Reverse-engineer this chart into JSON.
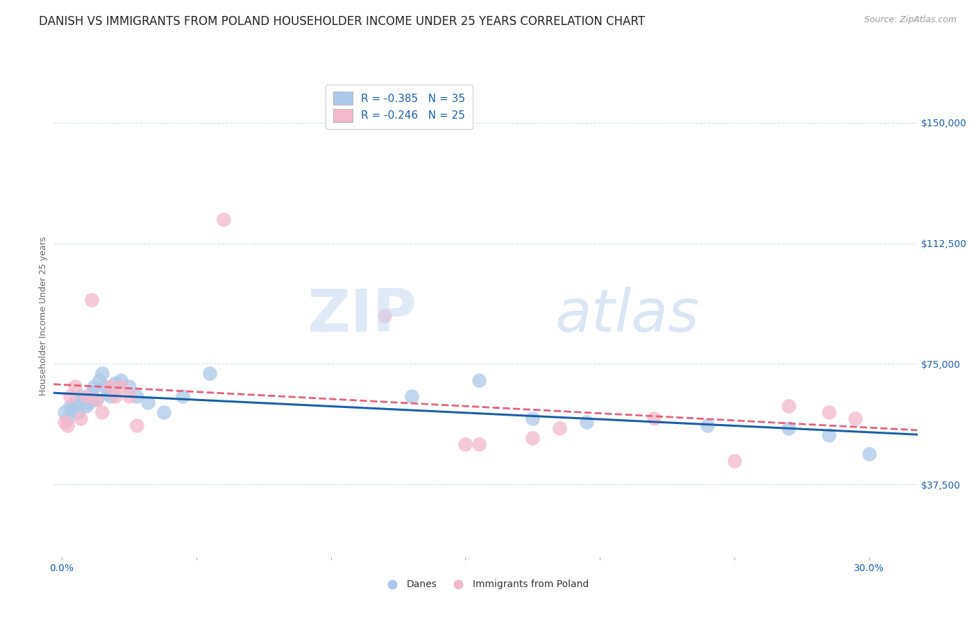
{
  "title": "DANISH VS IMMIGRANTS FROM POLAND HOUSEHOLDER INCOME UNDER 25 YEARS CORRELATION CHART",
  "source": "Source: ZipAtlas.com",
  "ylabel": "Householder Income Under 25 years",
  "ytick_labels": [
    "$37,500",
    "$75,000",
    "$112,500",
    "$150,000"
  ],
  "ytick_values": [
    37500,
    75000,
    112500,
    150000
  ],
  "ymin": 15000,
  "ymax": 165000,
  "xmin": -0.003,
  "xmax": 0.318,
  "blue_scatter_x": [
    0.001,
    0.002,
    0.003,
    0.004,
    0.005,
    0.006,
    0.007,
    0.008,
    0.009,
    0.01,
    0.011,
    0.012,
    0.013,
    0.014,
    0.015,
    0.016,
    0.017,
    0.018,
    0.019,
    0.02,
    0.022,
    0.025,
    0.028,
    0.032,
    0.038,
    0.045,
    0.055,
    0.13,
    0.155,
    0.175,
    0.195,
    0.24,
    0.27,
    0.285,
    0.3
  ],
  "blue_scatter_y": [
    60000,
    58000,
    62000,
    61000,
    63000,
    60000,
    65000,
    64000,
    62000,
    63000,
    66000,
    68000,
    64000,
    70000,
    72000,
    68000,
    66000,
    65000,
    67000,
    69000,
    70000,
    68000,
    65000,
    63000,
    60000,
    65000,
    72000,
    65000,
    70000,
    58000,
    57000,
    56000,
    55000,
    53000,
    47000
  ],
  "pink_scatter_x": [
    0.001,
    0.002,
    0.003,
    0.005,
    0.007,
    0.009,
    0.011,
    0.013,
    0.015,
    0.018,
    0.02,
    0.022,
    0.025,
    0.028,
    0.06,
    0.12,
    0.15,
    0.155,
    0.175,
    0.185,
    0.22,
    0.25,
    0.27,
    0.285,
    0.295
  ],
  "pink_scatter_y": [
    57000,
    56000,
    65000,
    68000,
    58000,
    65000,
    95000,
    64000,
    60000,
    68000,
    65000,
    68000,
    65000,
    56000,
    120000,
    90000,
    50000,
    50000,
    52000,
    55000,
    58000,
    45000,
    62000,
    60000,
    58000
  ],
  "blue_color": "#adc8e8",
  "pink_color": "#f4b8cb",
  "blue_line_color": "#1a5fa8",
  "pink_line_color": "#e8607a",
  "grid_color": "#d8e0ec",
  "background_color": "#ffffff",
  "watermark_zip": "ZIP",
  "watermark_atlas": "atlas",
  "title_fontsize": 12,
  "axis_label_fontsize": 9,
  "tick_label_fontsize": 10,
  "legend_fontsize": 11,
  "source_fontsize": 9
}
